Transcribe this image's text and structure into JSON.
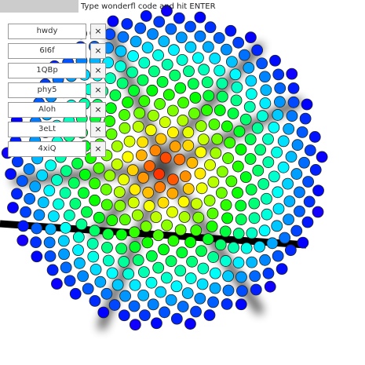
{
  "header": {
    "prompt": "Type wonderfl code and hit ENTER"
  },
  "items": [
    {
      "code": "hwdy",
      "close": "×"
    },
    {
      "code": "6I6f",
      "close": "×"
    },
    {
      "code": "1QBp",
      "close": "×"
    },
    {
      "code": "phy5",
      "close": "×"
    },
    {
      "code": "Aloh",
      "close": "×"
    },
    {
      "code": "3eLt",
      "close": "×"
    },
    {
      "code": "4xiQ",
      "close": "×"
    }
  ]
}
